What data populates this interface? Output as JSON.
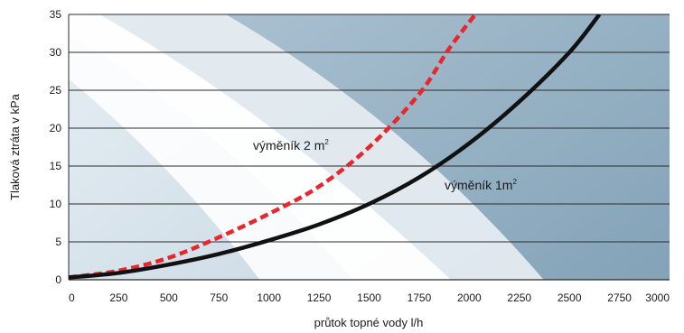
{
  "chart_data": {
    "type": "line",
    "title": "",
    "xlabel": "průtok topné vody l/h",
    "ylabel": "Tlaková ztráta v kPa",
    "xlim": [
      0,
      3000
    ],
    "ylim": [
      0,
      35
    ],
    "x_ticks": [
      "0",
      "250",
      "500",
      "750",
      "1000",
      "1250",
      "1500",
      "1750",
      "2000",
      "2250",
      "2500",
      "2750",
      "3000"
    ],
    "y_ticks": [
      "0",
      "5",
      "10",
      "15",
      "20",
      "25",
      "30",
      "35"
    ],
    "grid": "horizontal",
    "series": [
      {
        "name": "výměník 2 m²",
        "style": "dashed",
        "color": "#e8262b",
        "points": [
          [
            0,
            0.3
          ],
          [
            250,
            1.2
          ],
          [
            500,
            2.9
          ],
          [
            750,
            5.6
          ],
          [
            1000,
            8.7
          ],
          [
            1250,
            12.3
          ],
          [
            1500,
            17.5
          ],
          [
            1750,
            24.5
          ],
          [
            1900,
            30.5
          ],
          [
            2030,
            35
          ]
        ]
      },
      {
        "name": "výměník 1m²",
        "style": "solid",
        "color": "#111111",
        "points": [
          [
            0,
            0.3
          ],
          [
            250,
            0.9
          ],
          [
            500,
            2.0
          ],
          [
            750,
            3.4
          ],
          [
            1000,
            5.2
          ],
          [
            1250,
            7.3
          ],
          [
            1500,
            10.0
          ],
          [
            1750,
            13.5
          ],
          [
            2000,
            18.0
          ],
          [
            2250,
            23.5
          ],
          [
            2500,
            30.0
          ],
          [
            2650,
            35
          ]
        ]
      }
    ],
    "annotations": [
      {
        "text": "výměník 2 m",
        "sup": "2",
        "series": 0
      },
      {
        "text": "výměník 1m",
        "sup": "2",
        "series": 1
      }
    ]
  },
  "colors": {
    "background_light": "#dfe8ef",
    "background_mid": "#c3d3de",
    "background_dark": "#98b3c5",
    "band": "#ffffff",
    "gridline": "#2b2b2b"
  }
}
